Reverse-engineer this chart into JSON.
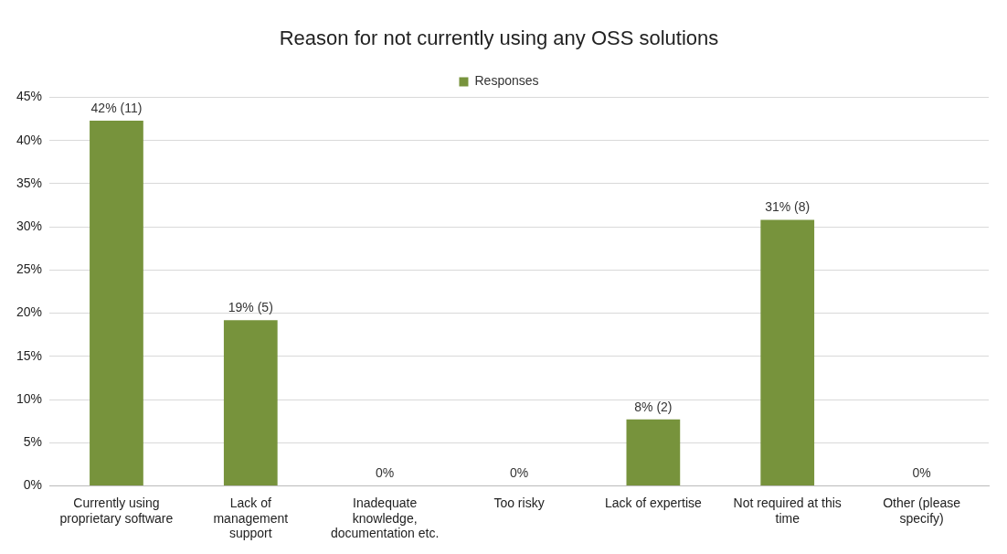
{
  "chart_data": {
    "type": "bar",
    "title": "Reason for not currently using any OSS solutions",
    "categories": [
      "Currently using proprietary software",
      "Lack of management support",
      "Inadequate knowledge, documentation etc.",
      "Too risky",
      "Lack of expertise",
      "Not required at this time",
      "Other (please specify)"
    ],
    "series": [
      {
        "name": "Responses",
        "color": "#77933c",
        "values": [
          42.3,
          19.2,
          0,
          0,
          7.7,
          30.8,
          0
        ],
        "value_labels": [
          "42% (11)",
          "19% (5)",
          "0%",
          "0%",
          "8% (2)",
          "31% (8)",
          "0%"
        ]
      }
    ],
    "ylim": [
      0,
      45
    ],
    "yticks": [
      {
        "value": 0,
        "label": "0%"
      },
      {
        "value": 5,
        "label": "5%"
      },
      {
        "value": 10,
        "label": "10%"
      },
      {
        "value": 15,
        "label": "15%"
      },
      {
        "value": 20,
        "label": "20%"
      },
      {
        "value": 25,
        "label": "25%"
      },
      {
        "value": 30,
        "label": "30%"
      },
      {
        "value": 35,
        "label": "35%"
      },
      {
        "value": 40,
        "label": "40%"
      },
      {
        "value": 45,
        "label": "45%"
      }
    ],
    "grid": "y",
    "legend": "top"
  }
}
